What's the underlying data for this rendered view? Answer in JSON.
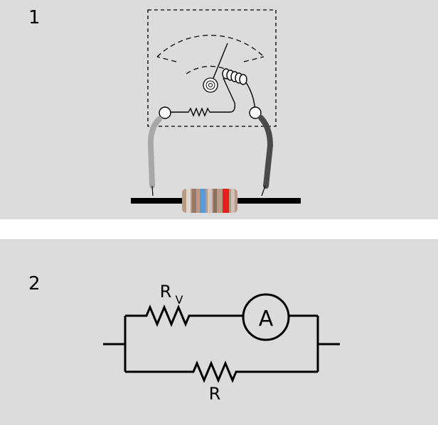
{
  "panels": [
    {
      "number": "1"
    },
    {
      "number": "2"
    }
  ],
  "circuit": {
    "rv_main": "R",
    "rv_sub": "V",
    "ammeter": "A",
    "shunt": "R"
  },
  "colors": {
    "background": "#dcdcdc",
    "wire": "#000000",
    "lead_left": "#a8a8a8",
    "lead_right": "#4a4a4a",
    "resistor_body": "#b89a86",
    "band_blue": "#5a9ad0",
    "band_red": "#e02020"
  }
}
